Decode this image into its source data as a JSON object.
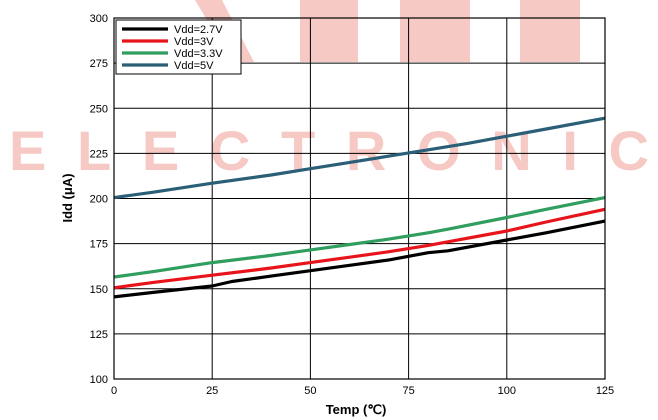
{
  "watermark": {
    "text": "ELECTRONIC",
    "color": "#f4bdb6"
  },
  "chart_data": {
    "type": "line",
    "title": "",
    "xlabel": "Temp (℃)",
    "ylabel": "Idd (μA)",
    "xlim": [
      0,
      125
    ],
    "ylim": [
      100,
      300
    ],
    "xticks": [
      0,
      25,
      50,
      75,
      100,
      125
    ],
    "yticks": [
      100,
      125,
      150,
      175,
      200,
      225,
      250,
      275,
      300
    ],
    "grid": true,
    "legend_position": "top-left",
    "series": [
      {
        "name": "Vdd=2.7V",
        "color": "#000000",
        "x": [
          0,
          10,
          25,
          30,
          40,
          50,
          60,
          70,
          80,
          85,
          100,
          110,
          125
        ],
        "y": [
          145.5,
          148,
          151.5,
          154,
          157,
          160,
          163,
          166,
          170,
          171,
          177,
          181,
          187.5
        ]
      },
      {
        "name": "Vdd=3V",
        "color": "#e8141b",
        "x": [
          0,
          10,
          25,
          40,
          50,
          60,
          70,
          80,
          85,
          100,
          110,
          125
        ],
        "y": [
          150.5,
          153.5,
          157.5,
          161.5,
          164.5,
          167.5,
          170.5,
          174,
          176,
          182,
          187,
          194
        ]
      },
      {
        "name": "Vdd=3.3V",
        "color": "#2f9e5f",
        "x": [
          0,
          10,
          25,
          40,
          50,
          60,
          70,
          80,
          85,
          100,
          110,
          125
        ],
        "y": [
          156.5,
          159.5,
          164.5,
          168.5,
          171.5,
          174.5,
          177.5,
          181,
          183,
          189.5,
          194,
          200.5
        ]
      },
      {
        "name": "Vdd=5V",
        "color": "#2b5f78",
        "x": [
          0,
          10,
          25,
          40,
          50,
          60,
          70,
          80,
          90,
          100,
          110,
          125
        ],
        "y": [
          200.5,
          203.5,
          208.5,
          213,
          216.5,
          220,
          223.5,
          227,
          230.5,
          234.5,
          238.5,
          244.5
        ]
      }
    ]
  }
}
